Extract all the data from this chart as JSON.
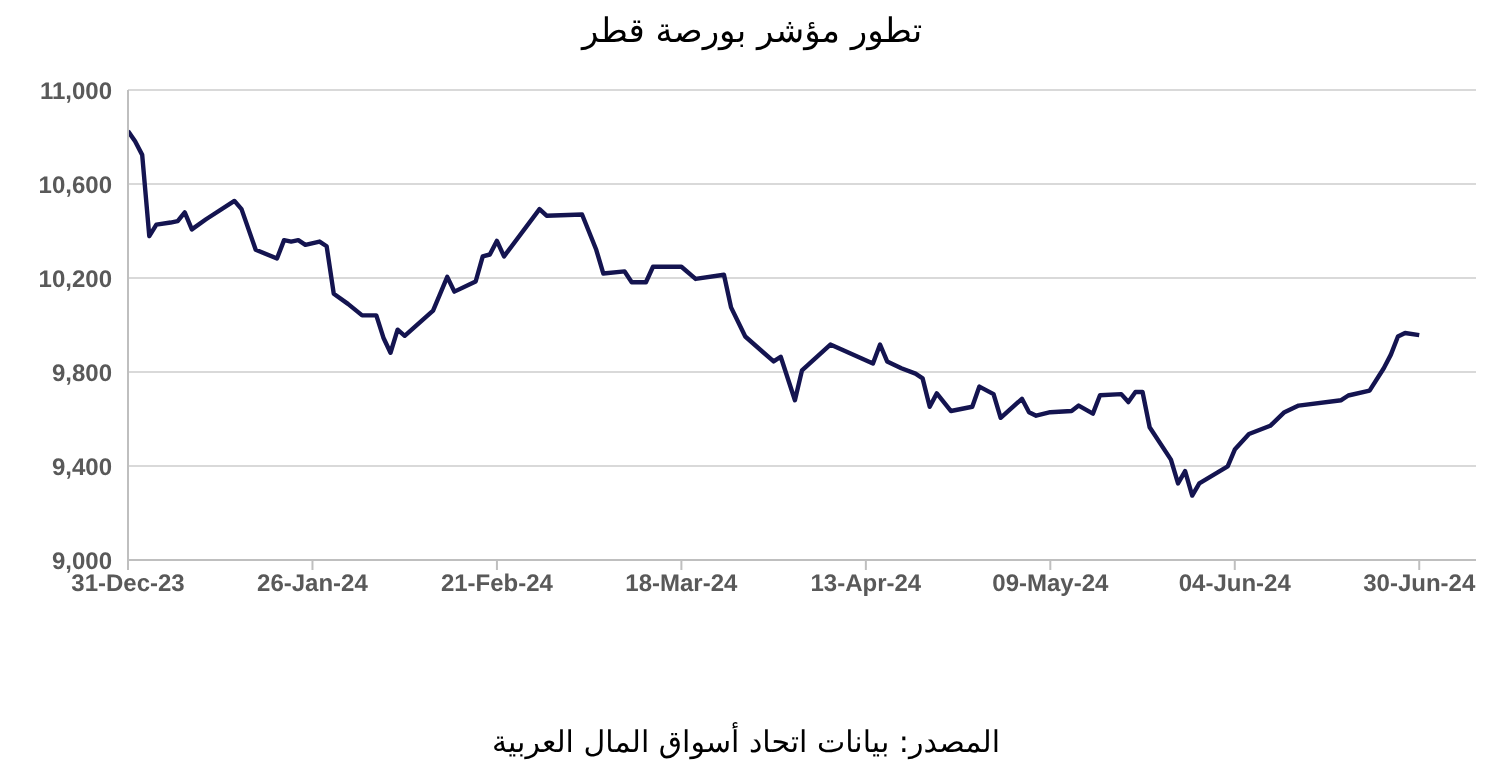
{
  "chart_data": {
    "type": "line",
    "title": "تطور مؤشر بورصة قطر",
    "annotations": [
      "المصدر: بيانات اتحاد أسواق المال العربية"
    ],
    "x": [
      "2023-12-31",
      "2024-01-01",
      "2024-01-02",
      "2024-01-03",
      "2024-01-04",
      "2024-01-06",
      "2024-01-07",
      "2024-01-08",
      "2024-01-09",
      "2024-01-11",
      "2024-01-15",
      "2024-01-16",
      "2024-01-18",
      "2024-01-21",
      "2024-01-22",
      "2024-01-23",
      "2024-01-24",
      "2024-01-25",
      "2024-01-27",
      "2024-01-28",
      "2024-01-29",
      "2024-01-31",
      "2024-02-02",
      "2024-02-04",
      "2024-02-05",
      "2024-02-06",
      "2024-02-07",
      "2024-02-08",
      "2024-02-12",
      "2024-02-14",
      "2024-02-15",
      "2024-02-18",
      "2024-02-19",
      "2024-02-20",
      "2024-02-21",
      "2024-02-22",
      "2024-02-27",
      "2024-02-28",
      "2024-03-04",
      "2024-03-06",
      "2024-03-07",
      "2024-03-10",
      "2024-03-11",
      "2024-03-13",
      "2024-03-14",
      "2024-03-18",
      "2024-03-20",
      "2024-03-24",
      "2024-03-25",
      "2024-03-27",
      "2024-03-31",
      "2024-04-01",
      "2024-04-03",
      "2024-04-04",
      "2024-04-08",
      "2024-04-14",
      "2024-04-15",
      "2024-04-16",
      "2024-04-18",
      "2024-04-20",
      "2024-04-21",
      "2024-04-22",
      "2024-04-23",
      "2024-04-25",
      "2024-04-28",
      "2024-04-29",
      "2024-05-01",
      "2024-05-02",
      "2024-05-05",
      "2024-05-06",
      "2024-05-07",
      "2024-05-09",
      "2024-05-12",
      "2024-05-13",
      "2024-05-15",
      "2024-05-16",
      "2024-05-19",
      "2024-05-20",
      "2024-05-21",
      "2024-05-22",
      "2024-05-23",
      "2024-05-26",
      "2024-05-27",
      "2024-05-28",
      "2024-05-29",
      "2024-05-30",
      "2024-06-03",
      "2024-06-04",
      "2024-06-06",
      "2024-06-09",
      "2024-06-11",
      "2024-06-13",
      "2024-06-19",
      "2024-06-20",
      "2024-06-23",
      "2024-06-25",
      "2024-06-26",
      "2024-06-27",
      "2024-06-28",
      "2024-06-30"
    ],
    "series": [
      {
        "color": "#141450",
        "values": [
          10825,
          10782,
          10724,
          10378,
          10427,
          10436,
          10442,
          10479,
          10407,
          10450,
          10528,
          10493,
          10320,
          10283,
          10361,
          10355,
          10361,
          10341,
          10355,
          10335,
          10133,
          10090,
          10041,
          10041,
          9946,
          9882,
          9980,
          9954,
          10061,
          10205,
          10142,
          10185,
          10292,
          10300,
          10358,
          10292,
          10493,
          10465,
          10470,
          10320,
          10219,
          10228,
          10182,
          10182,
          10248,
          10248,
          10196,
          10214,
          10075,
          9951,
          9845,
          9865,
          9680,
          9807,
          9917,
          9836,
          9917,
          9845,
          9816,
          9793,
          9773,
          9652,
          9709,
          9634,
          9652,
          9738,
          9706,
          9605,
          9686,
          9629,
          9614,
          9629,
          9634,
          9657,
          9623,
          9701,
          9706,
          9672,
          9715,
          9715,
          9565,
          9427,
          9326,
          9378,
          9274,
          9326,
          9398,
          9470,
          9536,
          9571,
          9629,
          9657,
          9680,
          9700,
          9721,
          9816,
          9874,
          9951,
          9966,
          9957
        ]
      }
    ],
    "xlim": [
      "2023-12-31",
      "2024-07-08"
    ],
    "xticks": [
      {
        "value": "2023-12-31",
        "label": "31-Dec-23"
      },
      {
        "value": "2024-01-26",
        "label": "26-Jan-24"
      },
      {
        "value": "2024-02-21",
        "label": "21-Feb-24"
      },
      {
        "value": "2024-03-18",
        "label": "18-Mar-24"
      },
      {
        "value": "2024-04-13",
        "label": "13-Apr-24"
      },
      {
        "value": "2024-05-09",
        "label": "09-May-24"
      },
      {
        "value": "2024-06-04",
        "label": "04-Jun-24"
      },
      {
        "value": "2024-06-30",
        "label": "30-Jun-24"
      }
    ],
    "ylim": [
      9000,
      11000
    ],
    "yticks": [
      {
        "value": 9000,
        "label": "9,000"
      },
      {
        "value": 9400,
        "label": "9,400"
      },
      {
        "value": 9800,
        "label": "9,800"
      },
      {
        "value": 10200,
        "label": "10,200"
      },
      {
        "value": 10600,
        "label": "10,600"
      },
      {
        "value": 11000,
        "label": "11,000"
      }
    ],
    "grid": "y",
    "legend": false,
    "marker": "none",
    "line_style": "solid"
  }
}
